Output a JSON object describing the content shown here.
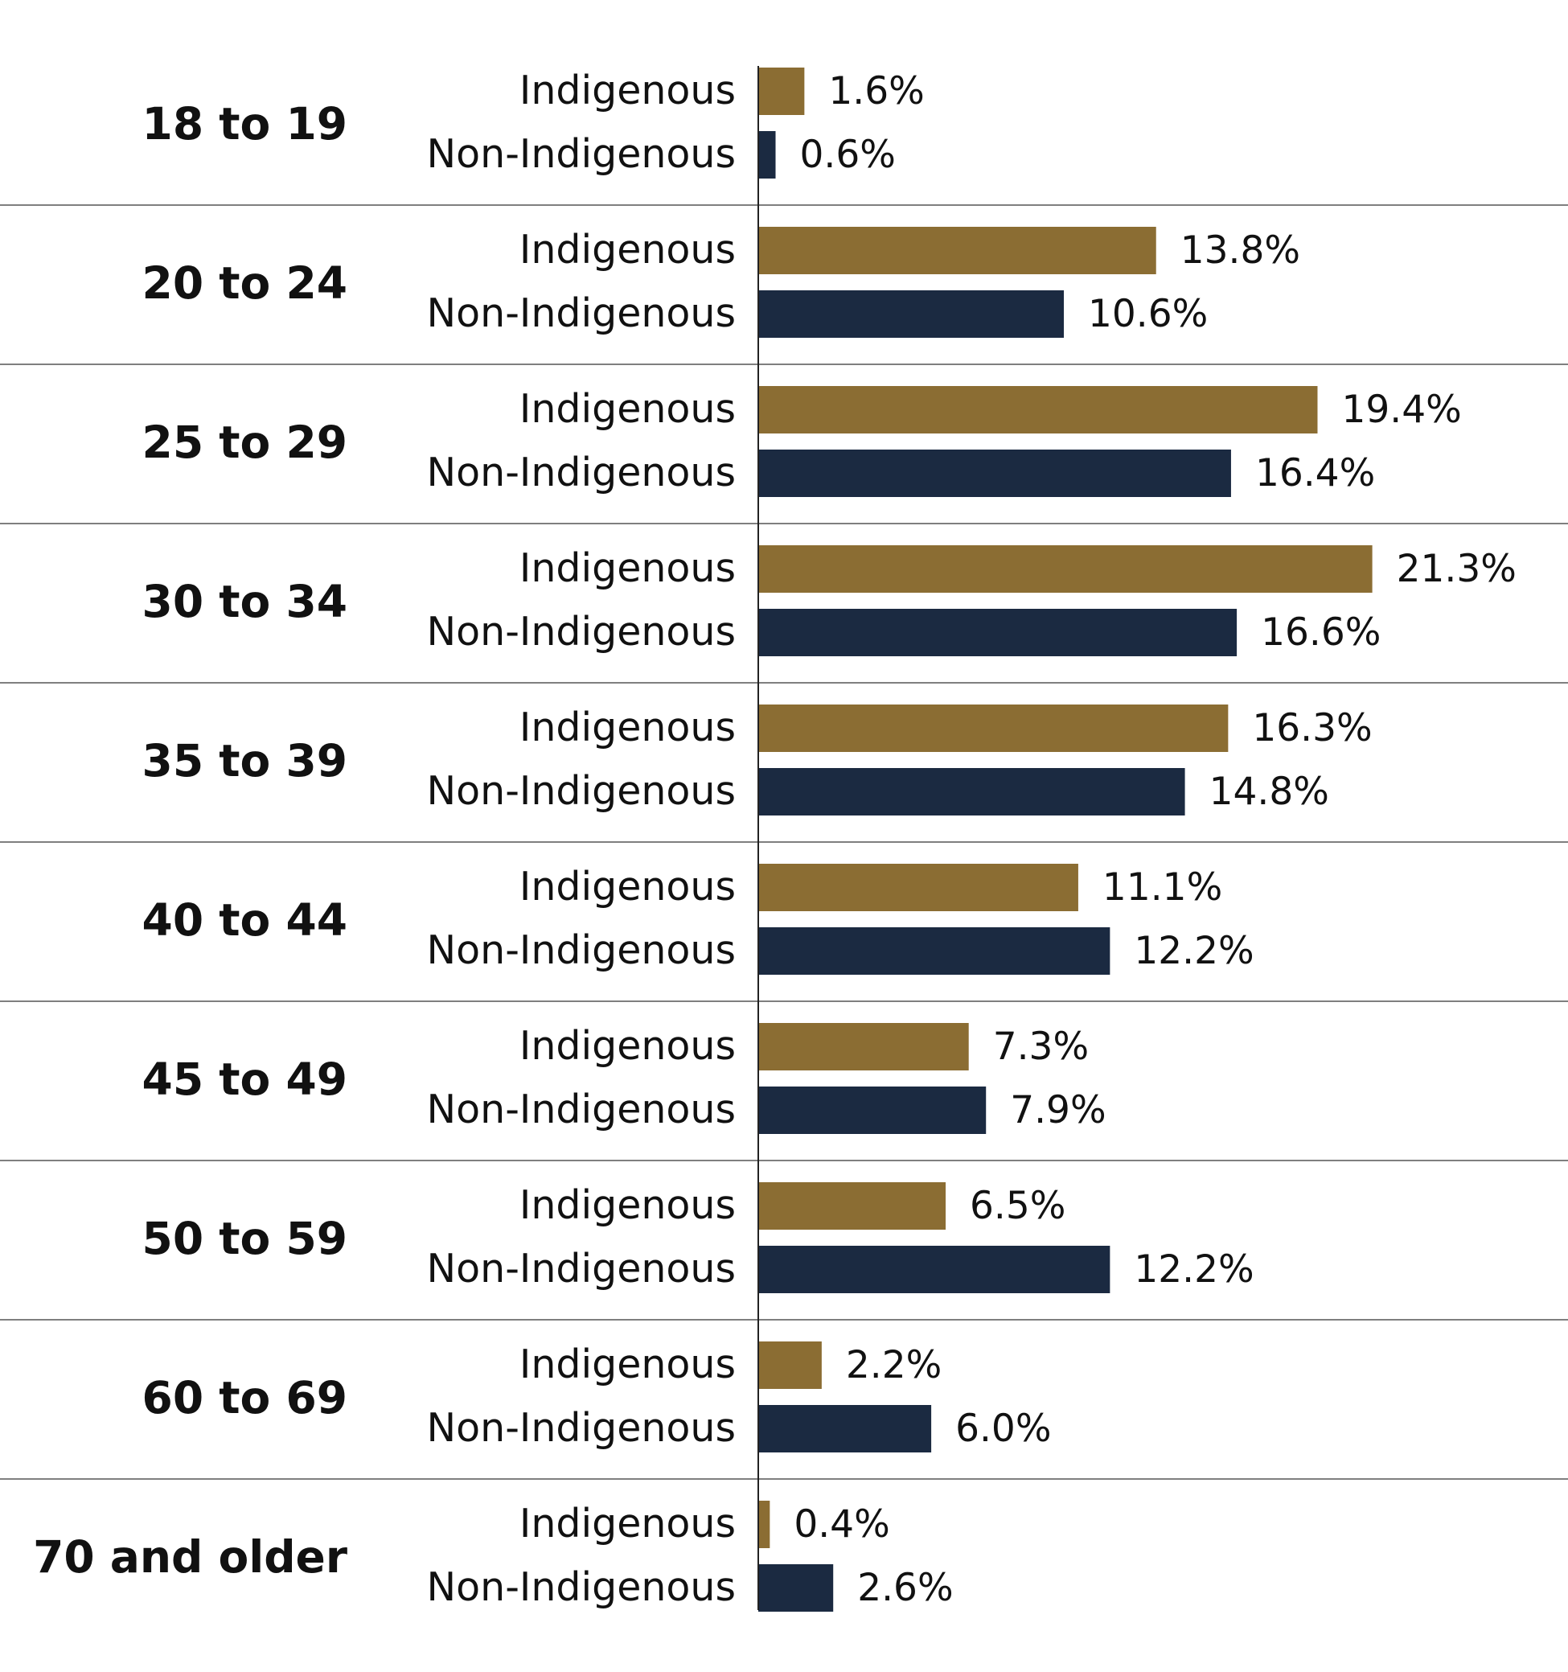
{
  "chart_data": {
    "type": "bar",
    "orientation": "horizontal",
    "categories": [
      "18 to 19",
      "20 to 24",
      "25 to 29",
      "30 to 34",
      "35 to 39",
      "40 to 44",
      "45 to 49",
      "50 to 59",
      "60 to 69",
      "70 and older"
    ],
    "series": [
      {
        "name": "Indigenous",
        "color": "#8b6d33",
        "values": [
          1.6,
          13.8,
          19.4,
          21.3,
          16.3,
          11.1,
          7.3,
          6.5,
          2.2,
          0.4
        ],
        "labels": [
          "1.6%",
          "13.8%",
          "19.4%",
          "21.3%",
          "16.3%",
          "11.1%",
          "7.3%",
          "6.5%",
          "2.2%",
          "0.4%"
        ]
      },
      {
        "name": "Non-Indigenous",
        "color": "#1b2a41",
        "values": [
          0.6,
          10.6,
          16.4,
          16.6,
          14.8,
          12.2,
          7.9,
          12.2,
          6.0,
          2.6
        ],
        "labels": [
          "0.6%",
          "10.6%",
          "16.4%",
          "16.6%",
          "14.8%",
          "12.2%",
          "7.9%",
          "12.2%",
          "6.0%",
          "2.6%"
        ]
      }
    ],
    "xlim": [
      0,
      25
    ],
    "grid": false,
    "legend": "none"
  }
}
